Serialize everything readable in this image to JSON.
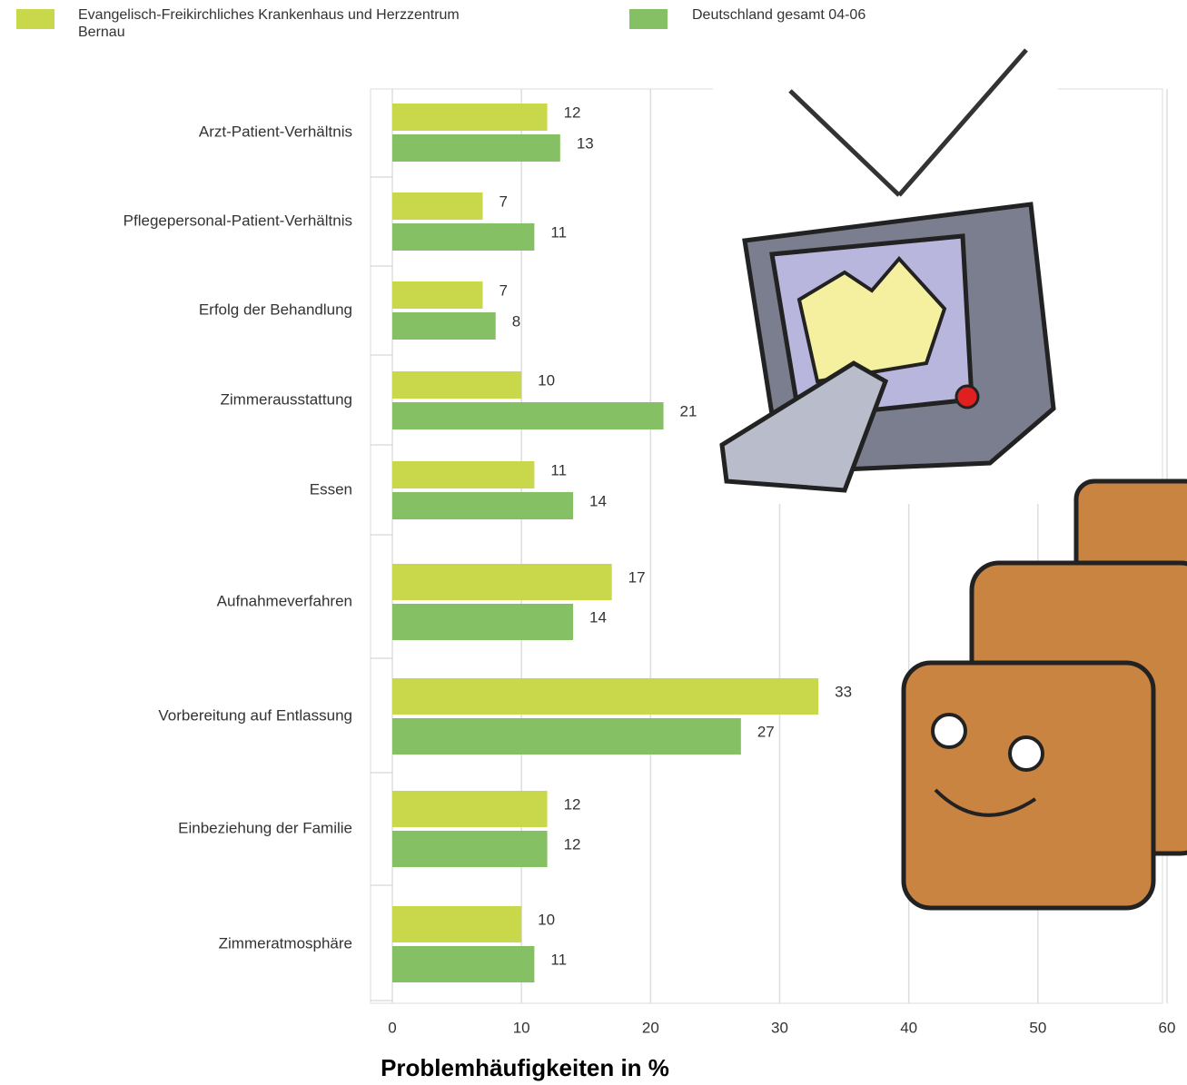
{
  "chart_data": {
    "type": "bar",
    "orientation": "horizontal",
    "xlabel": "Problemhäufigkeiten in %",
    "categories": [
      "Arzt-Patient-Verhältnis",
      "Pflegepersonal-Patient-Verhältnis",
      "Erfolg der Behandlung",
      "Zimmerausstattung",
      "Essen",
      "Aufnahmeverfahren",
      "Vorbereitung auf Entlassung",
      "Einbeziehung der Familie",
      "Zimmeratmosphäre"
    ],
    "series": [
      {
        "name": "Evangelisch-Freikirchliches Krankenhaus und Herzzentrum Bernau",
        "color": "#c8d84a",
        "values": [
          12,
          7,
          7,
          10,
          11,
          17,
          33,
          12,
          10
        ]
      },
      {
        "name": "Deutschland gesamt 04-06",
        "color": "#86c064",
        "values": [
          13,
          11,
          8,
          21,
          14,
          14,
          27,
          12,
          11
        ]
      }
    ],
    "xlim": [
      0,
      60
    ],
    "xticks": [
      0,
      10,
      20,
      30,
      40,
      50,
      60
    ],
    "grid": true
  }
}
